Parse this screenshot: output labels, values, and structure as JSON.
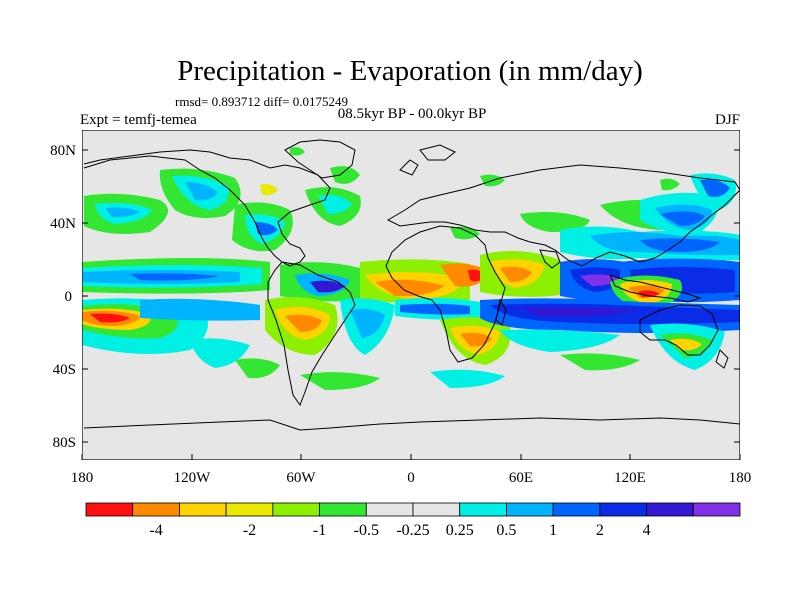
{
  "title": "Precipitation - Evaporation (in mm/day)",
  "stats": "rmsd= 0.893712 diff= 0.0175249",
  "experiment": "Expt = temfj-temea",
  "period": "08.5kyr BP - 00.0kyr BP",
  "season": "DJF",
  "lat_ticks": [
    "80N",
    "40N",
    "0",
    "40S",
    "80S"
  ],
  "lon_ticks": [
    "180",
    "120W",
    "60W",
    "0",
    "60E",
    "120E",
    "180"
  ],
  "colorbar": {
    "colors": [
      "#ff1010",
      "#ff8a00",
      "#ffd200",
      "#eaea00",
      "#8cf000",
      "#32e632",
      "#e6e6e6",
      "#e6e6e6",
      "#00f0e6",
      "#00b4ff",
      "#0064ff",
      "#0a2ce6",
      "#3218d2",
      "#8232e6"
    ],
    "labels": [
      "-4",
      "-2",
      "-1",
      "-0.5",
      "-0.25",
      "0.25",
      "0.5",
      "1",
      "2",
      "4"
    ]
  },
  "map": {
    "lon_range": [
      -180,
      180
    ],
    "lat_range": [
      -90,
      90
    ],
    "background_color": "#e6e6e6"
  }
}
